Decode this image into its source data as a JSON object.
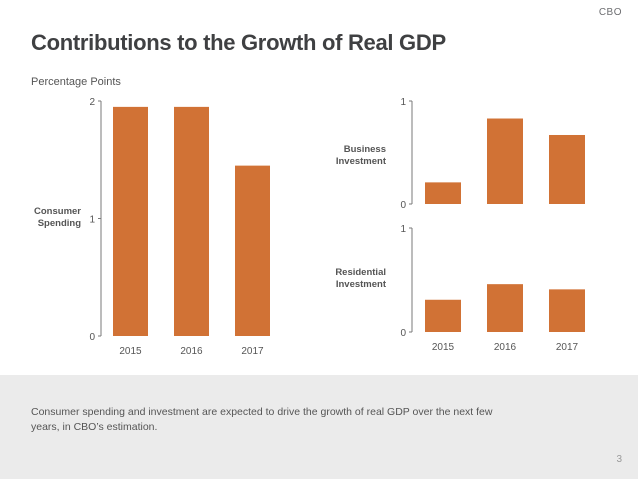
{
  "header": {
    "logo": "CBO",
    "title": "Contributions to the Growth of Real GDP"
  },
  "chart_meta": {
    "unit_label": "Percentage Points"
  },
  "colors": {
    "bar": "#d17235",
    "axis": "#7a7a7a",
    "text": "#555555",
    "footer_bg": "#ebebeb"
  },
  "chart_data": [
    {
      "type": "bar",
      "series_label": [
        "Consumer",
        "Spending"
      ],
      "categories": [
        "2015",
        "2016",
        "2017"
      ],
      "values": [
        1.95,
        1.95,
        1.45
      ],
      "ylim": [
        0,
        2
      ],
      "yticks": [
        "0",
        "1",
        "2"
      ],
      "ylabel": "Percentage Points"
    },
    {
      "type": "bar",
      "series_label": [
        "Business",
        "Investment"
      ],
      "categories": [
        "2015",
        "2016",
        "2017"
      ],
      "values": [
        0.21,
        0.83,
        0.67
      ],
      "ylim": [
        0,
        1
      ],
      "yticks": [
        "0",
        "1"
      ]
    },
    {
      "type": "bar",
      "series_label": [
        "Residential",
        "Investment"
      ],
      "categories": [
        "2015",
        "2016",
        "2017"
      ],
      "values": [
        0.31,
        0.46,
        0.41
      ],
      "ylim": [
        0,
        1
      ],
      "yticks": [
        "0",
        "1"
      ],
      "xlabels_shown": true
    }
  ],
  "footer": {
    "text": "Consumer spending and investment are expected to drive the growth of real GDP over the next few years, in CBO’s estimation.",
    "page_number": "3"
  }
}
